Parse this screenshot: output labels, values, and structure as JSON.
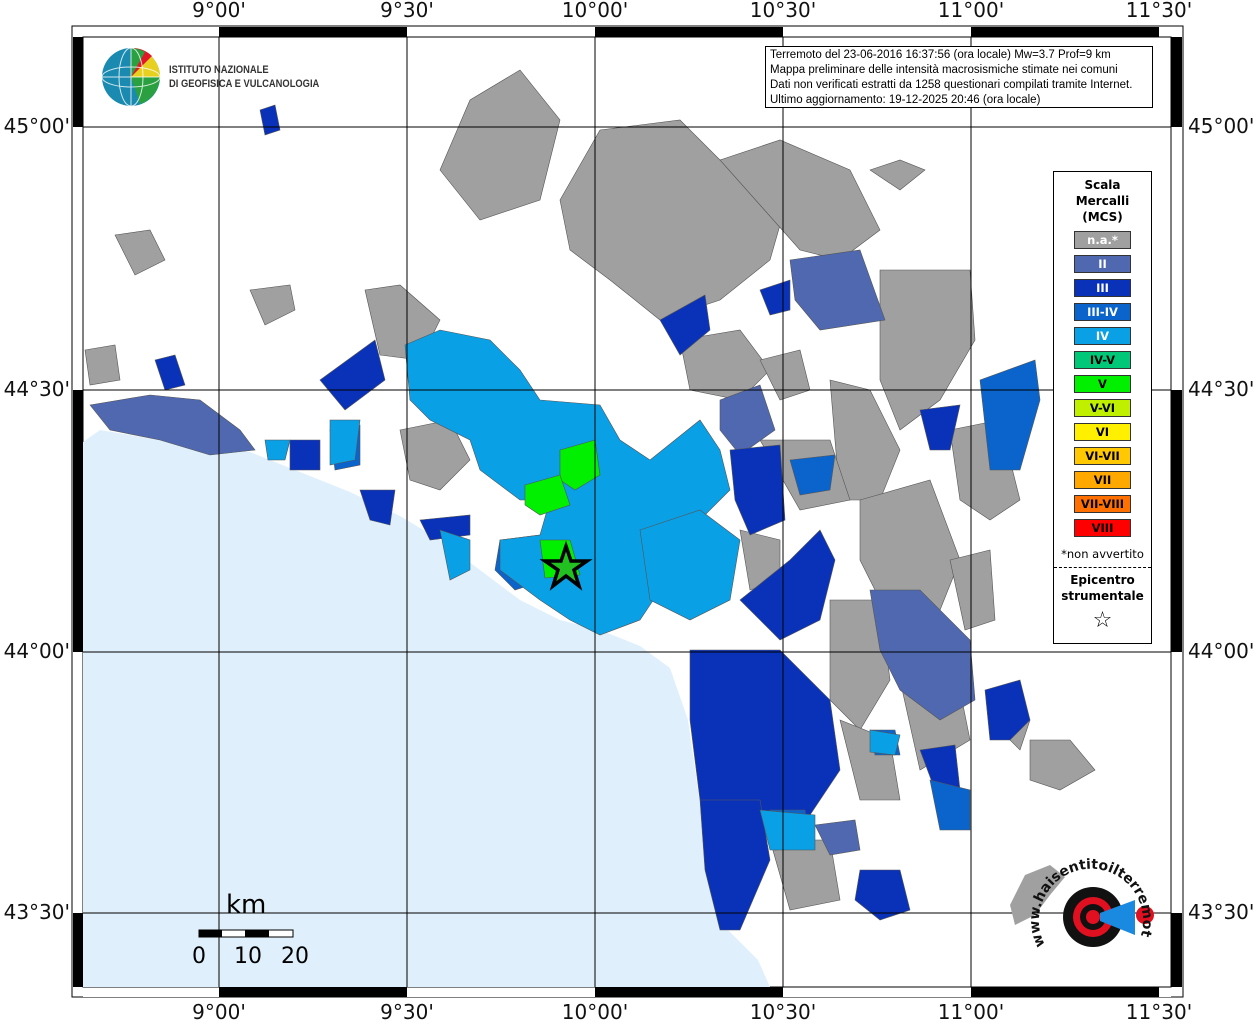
{
  "info_box": {
    "lines": [
      "Terremoto del 23-06-2016 16:37:56 (ora locale) Mw=3.7 Prof=9 km",
      "Mappa preliminare delle intensità macrosismiche stimate nei comuni",
      "Dati non verificati estratti da 1258 questionari compilati tramite Internet.",
      "Ultimo aggiornamento: 19-12-2025 20:46 (ora locale)"
    ]
  },
  "logo": {
    "text_line1": "ISTITUTO NAZIONALE",
    "text_line2": "DI GEOFISICA E VULCANOLOGIA"
  },
  "hsit_logo": {
    "text": "www.haisentitoilterremoto.it"
  },
  "axes": {
    "longitude_labels": [
      "9°00'",
      "9°30'",
      "10°00'",
      "10°30'",
      "11°00'",
      "11°30'"
    ],
    "latitude_labels": [
      "45°00'",
      "44°30'",
      "44°00'",
      "43°30'"
    ]
  },
  "legend": {
    "title": [
      "Scala",
      "Mercalli",
      "(MCS)"
    ],
    "classes": [
      {
        "label": "n.a.*",
        "color": "#a0a0a0",
        "text_color": "#ffffff"
      },
      {
        "label": "II",
        "color": "#4f68b0",
        "text_color": "#ffffff"
      },
      {
        "label": "III",
        "color": "#0a32b8",
        "text_color": "#ffffff"
      },
      {
        "label": "III-IV",
        "color": "#0a64cc",
        "text_color": "#ffffff"
      },
      {
        "label": "IV",
        "color": "#0aa0e6",
        "text_color": "#ffffff"
      },
      {
        "label": "IV-V",
        "color": "#00c878",
        "text_color": "#000000"
      },
      {
        "label": "V",
        "color": "#00f000",
        "text_color": "#000000"
      },
      {
        "label": "V-VI",
        "color": "#c0f000",
        "text_color": "#000000"
      },
      {
        "label": "VI",
        "color": "#fff000",
        "text_color": "#000000"
      },
      {
        "label": "VI-VII",
        "color": "#ffc800",
        "text_color": "#000000"
      },
      {
        "label": "VII",
        "color": "#ffa800",
        "text_color": "#000000"
      },
      {
        "label": "VII-VIII",
        "color": "#ff7000",
        "text_color": "#000000"
      },
      {
        "label": "VIII",
        "color": "#ff0000",
        "text_color": "#000000"
      }
    ],
    "note": "*non avvertito",
    "epicenter_label": [
      "Epicentro",
      "strumentale"
    ],
    "epicenter_icon": "star-icon"
  },
  "scale_bar": {
    "unit": "km",
    "ticks": [
      "0",
      "10",
      "20"
    ]
  },
  "colors": {
    "sea": "#dff0fc",
    "land": "#ffffff",
    "epicenter": "#22c020"
  }
}
